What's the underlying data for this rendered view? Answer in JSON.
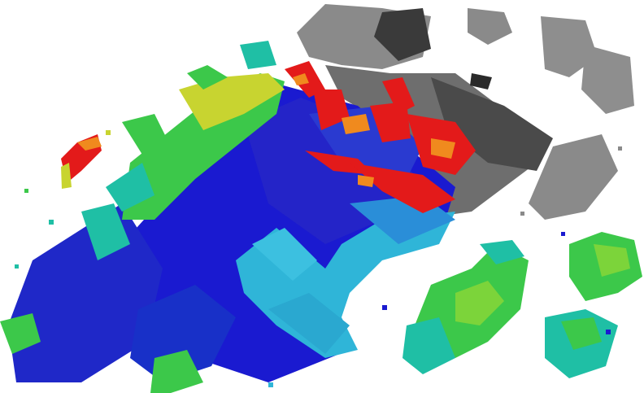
{
  "scene": {
    "description_text": "",
    "palette": {
      "background": "#ffffff",
      "ground_low": "#1a1ad0",
      "ground_mid": "#2a7fe0",
      "ground_cyan": "#2fb5d8",
      "vegetation_teal": "#1fbfa5",
      "vegetation_green": "#3cc84a",
      "vegetation_yellow": "#c8d430",
      "elevated_red": "#e31a1a",
      "elevated_orange": "#f08a1e",
      "unknown_grey": "#8a8a8a",
      "unknown_dark": "#3a3a3a"
    },
    "legend_icons": [
      "voxel-ground",
      "voxel-vegetation",
      "voxel-obstacle",
      "voxel-unknown"
    ]
  }
}
